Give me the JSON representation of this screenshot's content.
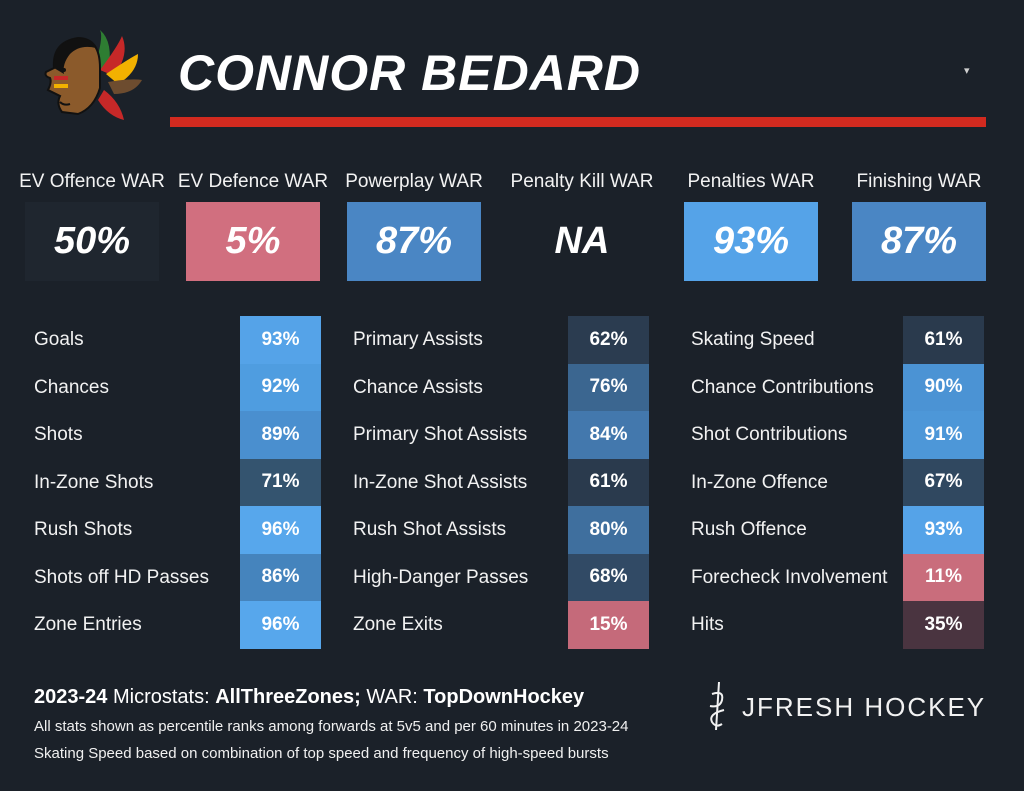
{
  "player": {
    "name": "CONNOR BEDARD",
    "team_logo": "blackhawks-logo-icon"
  },
  "dropdown": {
    "icon": "caret-down-icon",
    "glyph": "▾"
  },
  "colors": {
    "background": "#1b2129",
    "accent": "#d22a1f",
    "high": "#4f9fe0",
    "mid": "#3a6c9a",
    "low": "#d16f7f",
    "neutral": "#212833"
  },
  "war": [
    {
      "label": "EV Offence WAR",
      "value": "50%",
      "color": "#1f262f"
    },
    {
      "label": "EV Defence WAR",
      "value": "5%",
      "color": "#d16f7f"
    },
    {
      "label": "Powerplay WAR",
      "value": "87%",
      "color": "#4a86c4"
    },
    {
      "label": "Penalty Kill WAR",
      "value": "NA",
      "color": "#1b2129"
    },
    {
      "label": "Penalties WAR",
      "value": "93%",
      "color": "#55a3e8"
    },
    {
      "label": "Finishing WAR",
      "value": "87%",
      "color": "#4a86c4"
    }
  ],
  "stats": {
    "col1": [
      {
        "label": "Goals",
        "value": "93%",
        "color": "#55a3e8"
      },
      {
        "label": "Chances",
        "value": "92%",
        "color": "#4f9de0"
      },
      {
        "label": "Shots",
        "value": "89%",
        "color": "#4a8fcf"
      },
      {
        "label": "In-Zone Shots",
        "value": "71%",
        "color": "#34546f"
      },
      {
        "label": "Rush Shots",
        "value": "96%",
        "color": "#57a7ec"
      },
      {
        "label": "Shots off HD Passes",
        "value": "86%",
        "color": "#4584bd"
      },
      {
        "label": "Zone Entries",
        "value": "96%",
        "color": "#57a7ec"
      }
    ],
    "col2": [
      {
        "label": "Primary Assists",
        "value": "62%",
        "color": "#2b3c50"
      },
      {
        "label": "Chance Assists",
        "value": "76%",
        "color": "#3b6690"
      },
      {
        "label": "Primary Shot Assists",
        "value": "84%",
        "color": "#4378ad"
      },
      {
        "label": "In-Zone Shot Assists",
        "value": "61%",
        "color": "#2a3a4d"
      },
      {
        "label": "Rush Shot Assists",
        "value": "80%",
        "color": "#3f6f9e"
      },
      {
        "label": "High-Danger Passes",
        "value": "68%",
        "color": "#314a65"
      },
      {
        "label": "Zone Exits",
        "value": "15%",
        "color": "#c56a7a"
      }
    ],
    "col3": [
      {
        "label": "Skating Speed",
        "value": "61%",
        "color": "#2a3a4d"
      },
      {
        "label": "Chance Contributions",
        "value": "90%",
        "color": "#4b93d4"
      },
      {
        "label": "Shot Contributions",
        "value": "91%",
        "color": "#4d97d8"
      },
      {
        "label": "In-Zone Offence",
        "value": "67%",
        "color": "#304860"
      },
      {
        "label": "Rush Offence",
        "value": "93%",
        "color": "#55a3e8"
      },
      {
        "label": "Forecheck Involvement",
        "value": "11%",
        "color": "#c96d7c"
      },
      {
        "label": "Hits",
        "value": "35%",
        "color": "#4a3440"
      }
    ]
  },
  "footer": {
    "season": "2023-24",
    "microstats_prefix": "Microstats:",
    "microstats_source": "AllThreeZones;",
    "war_prefix": "WAR:",
    "war_source": "TopDownHockey",
    "note1": "All stats shown as percentile ranks among forwards at 5v5 and per 60 minutes in 2023-24",
    "note2": "Skating Speed based on combination of top speed and frequency of high-speed bursts"
  },
  "brand": {
    "name": "JFRESH HOCKEY",
    "icon": "jfresh-logo-icon"
  }
}
